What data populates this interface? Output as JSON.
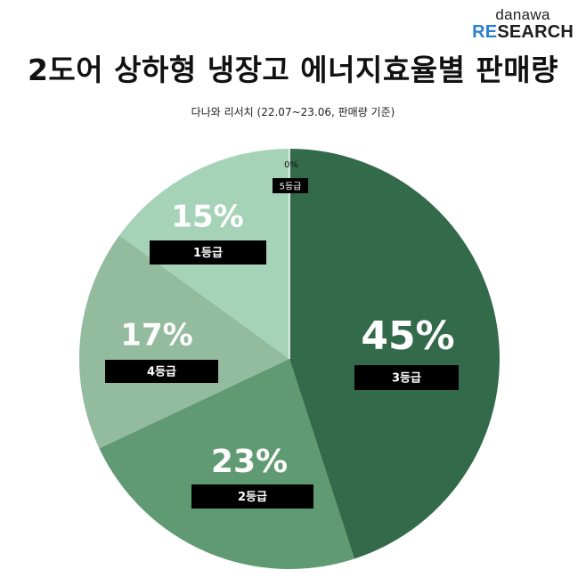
{
  "brand": {
    "line1": "danawa",
    "line2_accent": "RE",
    "line2_rest": "SEARCH"
  },
  "header": {
    "title": "2도어 상하형 냉장고 에너지효율별 판매량",
    "subtitle": "다나와 리서치 (22.07~23.06, 판매량 기준)"
  },
  "chart_data": {
    "type": "pie",
    "title": "2도어 상하형 냉장고 에너지효율별 판매량",
    "subtitle": "다나와 리서치 (22.07~23.06, 판매량 기준)",
    "slices": [
      {
        "label": "3등급",
        "value": 45,
        "value_label": "45%",
        "color": "#336b4a"
      },
      {
        "label": "2등급",
        "value": 23,
        "value_label": "23%",
        "color": "#5f9a72"
      },
      {
        "label": "4등급",
        "value": 17,
        "value_label": "17%",
        "color": "#93bb9e"
      },
      {
        "label": "1등급",
        "value": 15,
        "value_label": "15%",
        "color": "#a6d3b8"
      },
      {
        "label": "5등급",
        "value": 0,
        "value_label": "0%",
        "color": "#ffffff"
      }
    ],
    "start_angle": "top (12 o'clock)",
    "direction": "clockwise",
    "label_box_color": "#000000"
  }
}
